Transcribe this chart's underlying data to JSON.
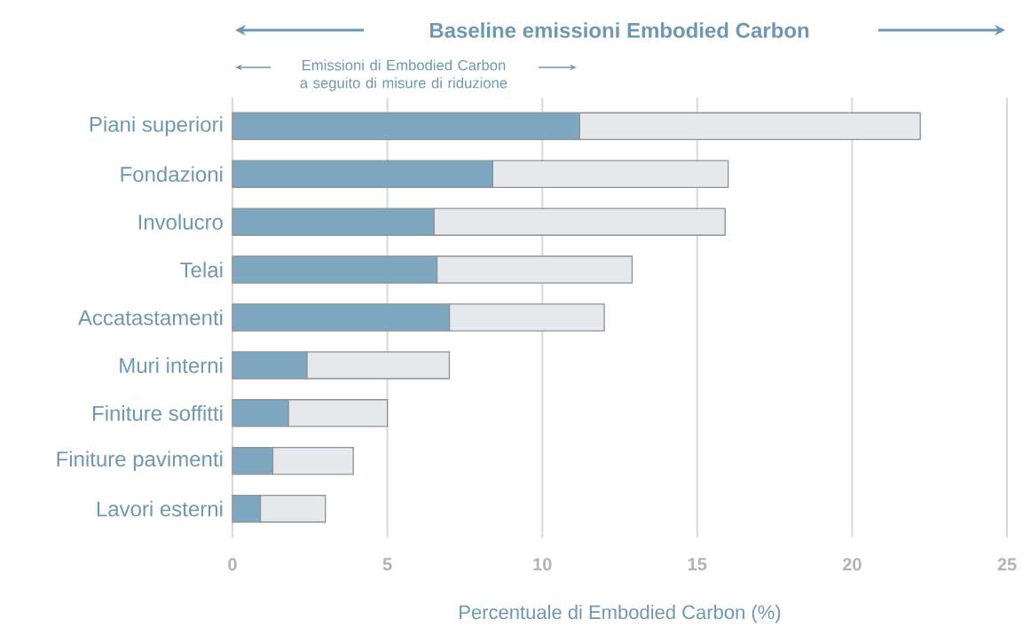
{
  "chart_data": {
    "type": "bar",
    "orientation": "horizontal",
    "stacked": true,
    "categories": [
      "Piani superiori",
      "Fondazioni",
      "Involucro",
      "Telai",
      "Accatastamenti",
      "Muri interni",
      "Finiture soffitti",
      "Finiture pavimenti",
      "Lavori esterni"
    ],
    "series": [
      {
        "color": "#7fa8c0",
        "values": [
          11.2,
          8.4,
          6.5,
          6.6,
          7.0,
          2.4,
          1.8,
          1.3,
          0.9
        ]
      },
      {
        "color": "#e6e9ec",
        "values": [
          11.0,
          7.6,
          9.4,
          6.3,
          5.0,
          4.6,
          3.2,
          2.6,
          2.1
        ]
      }
    ],
    "xlim": [
      0,
      25
    ],
    "xticks": [
      0,
      5,
      10,
      15,
      20,
      25
    ],
    "grid": "x",
    "xlabel": "Percentuale di Embodied Carbon (%)",
    "annotations": [
      "Baseline emissioni Embodied Carbon",
      "Emissioni di Embodied Carbon a seguito di misure di riduzione"
    ]
  }
}
